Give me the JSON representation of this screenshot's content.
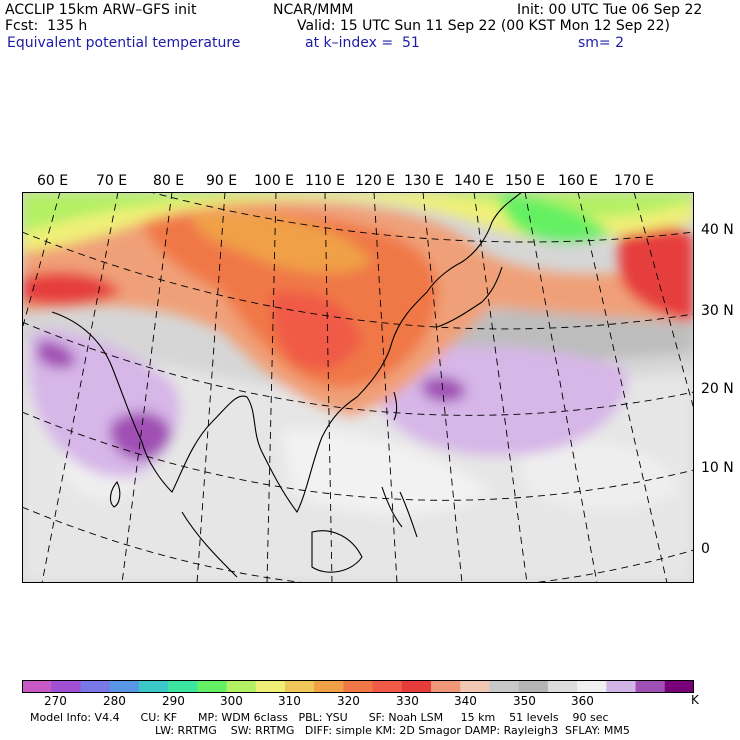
{
  "header": {
    "title_left": "ACCLIP 15km ARW–GFS init",
    "fcst": "Fcst:  135 h",
    "field": "Equivalent potential temperature",
    "center": "NCAR/MMM",
    "init": "Init: 00 UTC Tue 06 Sep 22",
    "valid": "Valid: 15 UTC Sun 11 Sep 22 (00 KST Mon 12 Sep 22)",
    "level": "at k–index =  51",
    "smooth": "sm= 2"
  },
  "map": {
    "lon_labels": [
      "60 E",
      "70 E",
      "80 E",
      "90 E",
      "100 E",
      "110 E",
      "120 E",
      "130 E",
      "140 E",
      "150 E",
      "160 E",
      "170 E"
    ],
    "lat_labels": [
      "40 N",
      "30 N",
      "20 N",
      "10 N",
      "0"
    ]
  },
  "colorbar": {
    "colors": [
      "#c85ac8",
      "#a050d2",
      "#7878e6",
      "#5a96e6",
      "#3cc8c8",
      "#3ce6a0",
      "#64f064",
      "#b4f064",
      "#f0f078",
      "#f0c85a",
      "#f0a046",
      "#f07846",
      "#f05a46",
      "#e63c3c",
      "#f09678",
      "#f0c8b4",
      "#c8c8c8",
      "#b4b4b4",
      "#dcdcdc",
      "#f0f0f0",
      "#d2b4e6",
      "#a050b4",
      "#780078"
    ],
    "labels": [
      "270",
      "280",
      "290",
      "300",
      "310",
      "320",
      "330",
      "340",
      "350",
      "360"
    ],
    "unit": "K"
  },
  "footer": {
    "line1": "Model Info: V4.4      CU: KF      MP: WDM 6class   PBL: YSU      SF: Noah LSM     15 km    51 levels    90 sec",
    "line2": "LW: RRTMG    SW: RRTMG   DIFF: simple KM: 2D Smagor DAMP: Rayleigh3  SFLAY: MM5"
  }
}
